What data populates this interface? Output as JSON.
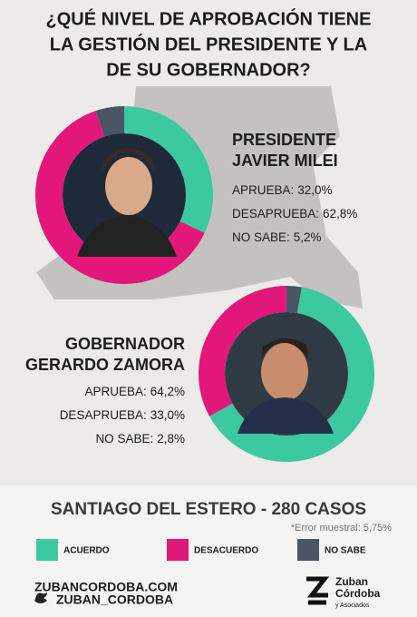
{
  "title": [
    "¿QUÉ NIVEL DE APROBACIÓN TIENE",
    "LA GESTIÓN DEL PRESIDENTE Y LA",
    "DE SU GOBERNADOR?"
  ],
  "chart_data": [
    {
      "type": "donut",
      "title": [
        "PRESIDENTE",
        "JAVIER MILEI"
      ],
      "categories": [
        "APRUEBA:",
        "DESAPRUEBA:",
        "NO SABE:"
      ],
      "values": [
        32.0,
        62.8,
        5.2
      ],
      "value_labels": [
        "32,0%",
        "62,8%",
        "5,2%"
      ],
      "colors": [
        "#3cc9a0",
        "#e3177a",
        "#4a5566"
      ]
    },
    {
      "type": "donut",
      "title": [
        "GOBERNADOR",
        "GERARDO ZAMORA"
      ],
      "categories": [
        "APRUEBA:",
        "DESAPRUEBA:",
        "NO SABE:"
      ],
      "values": [
        64.2,
        33.0,
        2.8
      ],
      "value_labels": [
        "64,2%",
        "33,0%",
        "2,8%"
      ],
      "colors": [
        "#3cc9a0",
        "#e3177a",
        "#4a5566"
      ]
    }
  ],
  "subtitle": "SANTIAGO DEL ESTERO - 280 CASOS",
  "note": "*Error muestral: 5,75%",
  "legend": [
    {
      "label": "ACUERDO",
      "color": "#3cc9a0"
    },
    {
      "label": "DESACUERDO",
      "color": "#e3177a"
    },
    {
      "label": "NO SABE",
      "color": "#4a5566"
    }
  ],
  "footer": {
    "website": "ZUBANCORDOBA.COM",
    "twitter": "ZUBAN_CORDOBA",
    "logo": [
      "Zuban",
      "Córdoba",
      "y Asociados"
    ]
  }
}
